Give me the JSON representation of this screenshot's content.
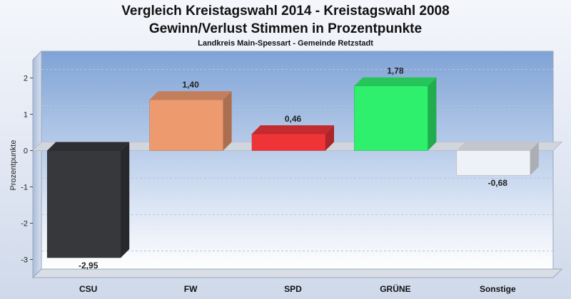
{
  "chart_data": {
    "type": "bar",
    "title": "Vergleich Kreistagswahl 2014 - Kreistagswahl 2008",
    "subtitle": "Gewinn/Verlust Stimmen in Prozentpunkte",
    "caption": "Landkreis Main-Spessart - Gemeinde Retzstadt",
    "ylabel": "Prozentpunkte",
    "xlabel": "",
    "ylim": [
      -3.5,
      2.5
    ],
    "yticks": [
      2,
      1,
      0,
      -1,
      -2,
      -3
    ],
    "ytick_labels": [
      "2",
      "1",
      "0",
      "-1",
      "-2",
      "-3"
    ],
    "categories": [
      "CSU",
      "FW",
      "SPD",
      "GRÜNE",
      "Sonstige"
    ],
    "values": [
      -2.95,
      1.4,
      0.46,
      1.78,
      -0.68
    ],
    "value_labels": [
      "-2,95",
      "1,40",
      "0,46",
      "1,78",
      "-0,68"
    ],
    "colors": [
      "#36383c",
      "#ee9a6f",
      "#ef3438",
      "#2ef06c",
      "#eef1f7"
    ],
    "grid": true,
    "legend": "none"
  }
}
